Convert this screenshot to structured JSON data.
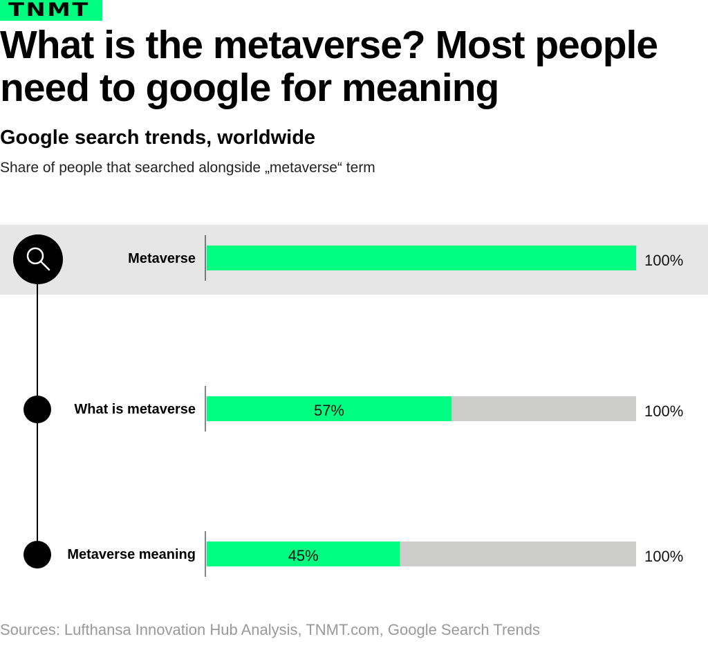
{
  "brand": {
    "logo": "TNMT",
    "accent": "#00ff80"
  },
  "title": "What is the metaverse? Most people need to google for meaning",
  "subtitle": "Google search trends, worldwide",
  "description": "Share of people that searched alongside „metaverse“ term",
  "source": "Sources: Lufthansa Innovation Hub Analysis, TNMT.com, Google Search Trends",
  "chart_data": {
    "type": "bar",
    "orientation": "horizontal",
    "categories": [
      "Metaverse",
      "What is metaverse",
      "Metaverse meaning"
    ],
    "values": [
      100,
      57,
      45
    ],
    "value_labels": [
      "",
      "57%",
      "45%"
    ],
    "total_labels": [
      "100%",
      "100%",
      "100%"
    ],
    "xlim": [
      0,
      100
    ],
    "highlighted": "Metaverse",
    "colors": {
      "value": "#00ff80",
      "remainder": "#cccccb",
      "highlight_band": "#e6e6e6",
      "markers": "#000000"
    },
    "icons": {
      "first_marker": "search-icon"
    }
  }
}
